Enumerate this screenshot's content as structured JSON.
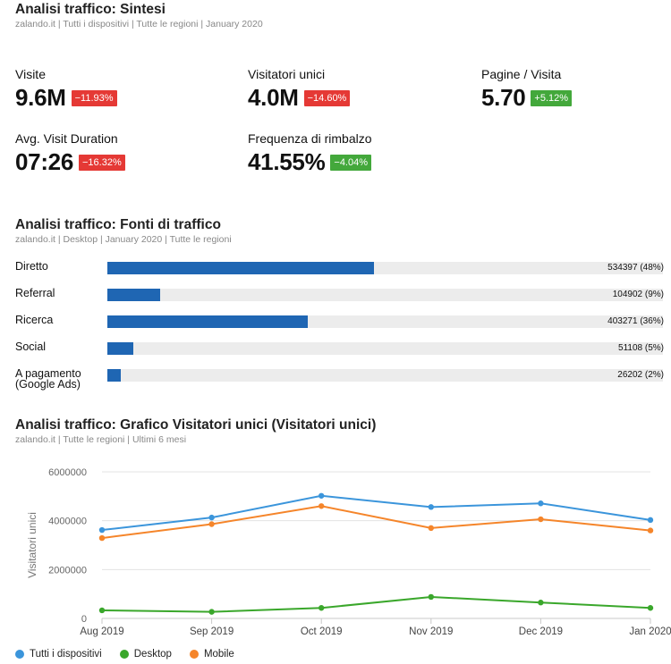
{
  "summary": {
    "title": "Analisi traffico: Sintesi",
    "subtitle": "zalando.it | Tutti i dispositivi | Tutte le regioni | January 2020",
    "metrics": [
      {
        "label": "Visite",
        "value": "9.6M",
        "delta": "−11.93%",
        "trend": "negative"
      },
      {
        "label": "Visitatori unici",
        "value": "4.0M",
        "delta": "−14.60%",
        "trend": "negative"
      },
      {
        "label": "Pagine / Visita",
        "value": "5.70",
        "delta": "+5.12%",
        "trend": "positive"
      },
      {
        "label": "Avg. Visit Duration",
        "value": "07:26",
        "delta": "−16.32%",
        "trend": "negative"
      },
      {
        "label": "Frequenza di rimbalzo",
        "value": "41.55%",
        "delta": "−4.04%",
        "trend": "positive"
      }
    ]
  },
  "sources": {
    "title": "Analisi traffico: Fonti di traffico",
    "subtitle": "zalando.it | Desktop | January 2020 | Tutte le regioni",
    "bar_color": "#1f66b3",
    "track_color": "#ececec",
    "items": [
      {
        "label": "Diretto",
        "value": "534397 (48%)",
        "share": 0.48
      },
      {
        "label": "Referral",
        "value": "104902 (9%)",
        "share": 0.095
      },
      {
        "label": "Ricerca",
        "value": "403271 (36%)",
        "share": 0.36
      },
      {
        "label": "Social",
        "value": "51108 (5%)",
        "share": 0.047
      },
      {
        "label": "A pagamento\n(Google Ads)",
        "value": "26202 (2%)",
        "share": 0.024
      }
    ]
  },
  "visitors": {
    "title": "Analisi traffico: Grafico Visitatori unici (Visitatori unici)",
    "subtitle": "zalando.it | Tutte le regioni | Ultimi 6 mesi"
  },
  "chart_data": {
    "type": "line",
    "categories": [
      "Aug 2019",
      "Sep 2019",
      "Oct 2019",
      "Nov 2019",
      "Dec 2019",
      "Jan 2020"
    ],
    "ylabel": "Visitatori unici",
    "ylim": [
      0,
      6000000
    ],
    "yticks": [
      "0",
      "2000000",
      "4000000",
      "6000000"
    ],
    "grid": true,
    "legend": "bottom-left",
    "series": [
      {
        "name": "Tutti i dispositivi",
        "color": "#3b95db",
        "values": [
          3620000,
          4130000,
          5020000,
          4560000,
          4710000,
          4030000
        ]
      },
      {
        "name": "Desktop",
        "color": "#3aa72b",
        "values": [
          330000,
          270000,
          430000,
          880000,
          650000,
          430000
        ]
      },
      {
        "name": "Mobile",
        "color": "#f5852a",
        "values": [
          3290000,
          3860000,
          4600000,
          3700000,
          4060000,
          3600000
        ]
      }
    ]
  }
}
